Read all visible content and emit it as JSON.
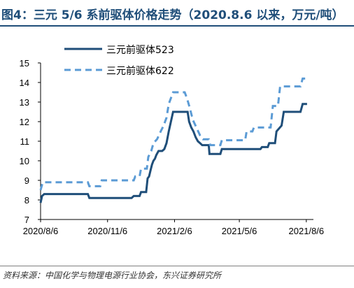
{
  "header": {
    "title": "图4：三元 5/6 系前驱体价格走势（2020.8.6 以来，万元/吨）"
  },
  "footer": {
    "source": "资料来源：中国化学与物理电源行业协会，东兴证券研究所"
  },
  "colors": {
    "title": "#1f4e79",
    "series_523": "#1f4e79",
    "series_622": "#5b9bd5"
  },
  "chart_data": {
    "type": "line",
    "title": "",
    "xlabel": "",
    "ylabel": "",
    "ylim": [
      7,
      15
    ],
    "yticks": [
      "7",
      "8",
      "9",
      "10",
      "11",
      "12",
      "13",
      "14",
      "15"
    ],
    "xticks": [
      "2020/8/6",
      "2020/11/6",
      "2021/2/6",
      "2021/5/6",
      "2021/8/6"
    ],
    "xlim": [
      "2020-08-06",
      "2021-08-10"
    ],
    "legend_position": "top-left",
    "series": [
      {
        "name": "三元前驱体523",
        "style": "solid",
        "color": "#1f4e79",
        "points": [
          [
            "2020-08-06",
            7.85
          ],
          [
            "2020-08-08",
            8.2
          ],
          [
            "2020-08-11",
            8.3
          ],
          [
            "2020-09-10",
            8.3
          ],
          [
            "2020-10-10",
            8.3
          ],
          [
            "2020-10-12",
            8.1
          ],
          [
            "2020-11-06",
            8.1
          ],
          [
            "2020-11-25",
            8.1
          ],
          [
            "2020-12-09",
            8.1
          ],
          [
            "2020-12-12",
            8.2
          ],
          [
            "2020-12-20",
            8.2
          ],
          [
            "2020-12-22",
            8.4
          ],
          [
            "2020-12-29",
            8.4
          ],
          [
            "2020-12-31",
            9.1
          ],
          [
            "2021-01-02",
            9.2
          ],
          [
            "2021-01-04",
            9.5
          ],
          [
            "2021-01-06",
            9.8
          ],
          [
            "2021-01-08",
            10.0
          ],
          [
            "2021-01-10",
            10.1
          ],
          [
            "2021-01-12",
            10.3
          ],
          [
            "2021-01-15",
            10.5
          ],
          [
            "2021-01-20",
            10.5
          ],
          [
            "2021-01-23",
            10.6
          ],
          [
            "2021-01-26",
            10.9
          ],
          [
            "2021-01-29",
            11.5
          ],
          [
            "2021-02-01",
            12.0
          ],
          [
            "2021-02-04",
            12.5
          ],
          [
            "2021-02-24",
            12.5
          ],
          [
            "2021-02-26",
            12.0
          ],
          [
            "2021-03-01",
            11.7
          ],
          [
            "2021-03-04",
            11.5
          ],
          [
            "2021-03-07",
            11.2
          ],
          [
            "2021-03-10",
            11.0
          ],
          [
            "2021-03-13",
            10.9
          ],
          [
            "2021-03-16",
            10.8
          ],
          [
            "2021-03-25",
            10.8
          ],
          [
            "2021-03-26",
            10.35
          ],
          [
            "2021-04-10",
            10.35
          ],
          [
            "2021-04-12",
            10.6
          ],
          [
            "2021-05-06",
            10.6
          ],
          [
            "2021-06-04",
            10.6
          ],
          [
            "2021-06-06",
            10.7
          ],
          [
            "2021-06-14",
            10.7
          ],
          [
            "2021-06-16",
            10.9
          ],
          [
            "2021-06-24",
            10.9
          ],
          [
            "2021-06-26",
            11.5
          ],
          [
            "2021-07-03",
            11.8
          ],
          [
            "2021-07-06",
            12.5
          ],
          [
            "2021-07-29",
            12.5
          ],
          [
            "2021-08-01",
            12.9
          ],
          [
            "2021-08-07",
            12.9
          ]
        ]
      },
      {
        "name": "三元前驱体622",
        "style": "dashed",
        "color": "#5b9bd5",
        "points": [
          [
            "2020-08-06",
            8.5
          ],
          [
            "2020-08-09",
            8.9
          ],
          [
            "2020-10-10",
            8.9
          ],
          [
            "2020-10-12",
            8.7
          ],
          [
            "2020-10-27",
            8.7
          ],
          [
            "2020-10-29",
            9.0
          ],
          [
            "2020-12-12",
            9.0
          ],
          [
            "2020-12-14",
            9.2
          ],
          [
            "2020-12-20",
            9.2
          ],
          [
            "2020-12-22",
            9.6
          ],
          [
            "2020-12-30",
            9.6
          ],
          [
            "2021-01-01",
            10.2
          ],
          [
            "2021-01-05",
            10.5
          ],
          [
            "2021-01-08",
            10.9
          ],
          [
            "2021-01-13",
            11.1
          ],
          [
            "2021-01-18",
            11.5
          ],
          [
            "2021-01-22",
            11.8
          ],
          [
            "2021-01-26",
            12.2
          ],
          [
            "2021-01-29",
            12.9
          ],
          [
            "2021-02-04",
            13.5
          ],
          [
            "2021-02-20",
            13.5
          ],
          [
            "2021-02-23",
            13.2
          ],
          [
            "2021-02-27",
            12.7
          ],
          [
            "2021-03-03",
            12.1
          ],
          [
            "2021-03-08",
            11.7
          ],
          [
            "2021-03-13",
            11.3
          ],
          [
            "2021-03-17",
            11.1
          ],
          [
            "2021-03-25",
            11.1
          ],
          [
            "2021-03-27",
            10.8
          ],
          [
            "2021-04-10",
            10.8
          ],
          [
            "2021-04-12",
            11.05
          ],
          [
            "2021-05-06",
            11.05
          ],
          [
            "2021-05-14",
            11.05
          ],
          [
            "2021-05-16",
            11.5
          ],
          [
            "2021-05-24",
            11.5
          ],
          [
            "2021-05-26",
            11.7
          ],
          [
            "2021-06-18",
            11.7
          ],
          [
            "2021-06-21",
            12.8
          ],
          [
            "2021-06-28",
            12.8
          ],
          [
            "2021-07-01",
            13.8
          ],
          [
            "2021-07-29",
            13.8
          ],
          [
            "2021-08-01",
            14.2
          ],
          [
            "2021-08-07",
            14.2
          ]
        ]
      }
    ]
  }
}
